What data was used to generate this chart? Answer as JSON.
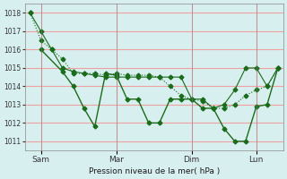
{
  "background_color": "#d8eff0",
  "grid_color": "#f0a0a0",
  "line_color": "#1a6b1a",
  "title": "Pression niveau de la mer( hPa )",
  "ylim": [
    1010.5,
    1018.5
  ],
  "yticks": [
    1011,
    1012,
    1013,
    1014,
    1015,
    1016,
    1017,
    1018
  ],
  "x_ticks_labels": [
    "Sam",
    "Mar",
    "Dim",
    "Lun"
  ],
  "x_ticks_pos": [
    1,
    8,
    15,
    21
  ],
  "series1_x": [
    0,
    1,
    2,
    3,
    4,
    5,
    6,
    7,
    8,
    9,
    10,
    11,
    12,
    13,
    14,
    15,
    16,
    17,
    18,
    19,
    20,
    21,
    22,
    23
  ],
  "series1_y": [
    1018.0,
    1017.0,
    1016.0,
    1015.0,
    1014.8,
    1014.7,
    1014.6,
    1014.5,
    1014.5,
    1014.5,
    1014.5,
    1014.5,
    1014.5,
    1014.5,
    1014.5,
    1013.3,
    1013.3,
    1012.8,
    1013.0,
    1013.8,
    1015.0,
    1015.0,
    1014.0,
    1015.0
  ],
  "series2_x": [
    0,
    1,
    2,
    3,
    4,
    5,
    6,
    7,
    8,
    9,
    10,
    11,
    12,
    13,
    14,
    15,
    16,
    17,
    18,
    19,
    20,
    21,
    22,
    23
  ],
  "series2_y": [
    1018.0,
    1016.5,
    1016.0,
    1015.5,
    1014.7,
    1014.7,
    1014.7,
    1014.6,
    1014.7,
    1014.6,
    1014.6,
    1014.6,
    1014.5,
    1014.0,
    1013.5,
    1013.3,
    1013.2,
    1012.8,
    1012.8,
    1013.0,
    1013.5,
    1013.8,
    1014.0,
    1015.0
  ],
  "series3_x": [
    1,
    3,
    4,
    5,
    6,
    7,
    8,
    9,
    10,
    11,
    12,
    13,
    14,
    15,
    16,
    17,
    18,
    19,
    20,
    21,
    22,
    23
  ],
  "series3_y": [
    1016.0,
    1014.8,
    1014.0,
    1012.8,
    1011.8,
    1014.7,
    1014.6,
    1013.3,
    1013.3,
    1012.0,
    1012.0,
    1013.3,
    1013.3,
    1013.3,
    1012.8,
    1012.8,
    1011.7,
    1011.0,
    1011.0,
    1012.9,
    1013.0,
    1015.0
  ]
}
